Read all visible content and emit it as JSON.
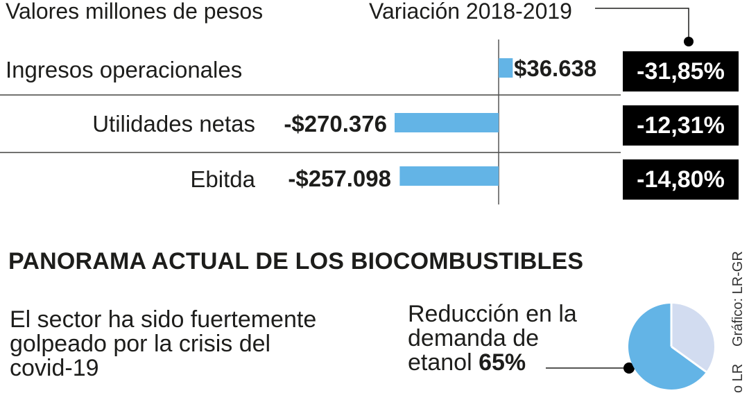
{
  "header": {
    "units_label": "Valores millones de pesos",
    "variation_label": "Variación 2018-2019"
  },
  "chart_data": {
    "type": "bar",
    "orientation": "horizontal",
    "categories": [
      "Ingresos operacionales",
      "Utilidades netas",
      "Ebitda"
    ],
    "values": [
      36638,
      -270376,
      -257098
    ],
    "value_labels": [
      "$36.638",
      "-$270.376",
      "-$257.098"
    ],
    "variation_labels": [
      "-31,85%",
      "-12,31%",
      "-14,80%"
    ],
    "variation_pct": [
      -31.85,
      -12.31,
      -14.8
    ],
    "title": "",
    "xlabel": "",
    "ylabel": "",
    "bar_color": "#63b4e6"
  },
  "panorama": {
    "title": "PANORAMA ACTUAL DE LOS BIOCOMBUSTIBLES",
    "sector_lines": [
      "El sector ha sido fuertemente",
      "golpeado por la crisis del",
      "covid-19"
    ],
    "demand_lines": [
      "Reducción en la",
      "demanda de",
      "etanol "
    ],
    "demand_value": "65%",
    "pie": {
      "reduction_pct": 65,
      "reduction_color": "#63b4e6",
      "rest_color": "#d2dcf0"
    }
  },
  "credits": {
    "graphic": "Gráfico: LR-GR",
    "photo": "o LR"
  }
}
